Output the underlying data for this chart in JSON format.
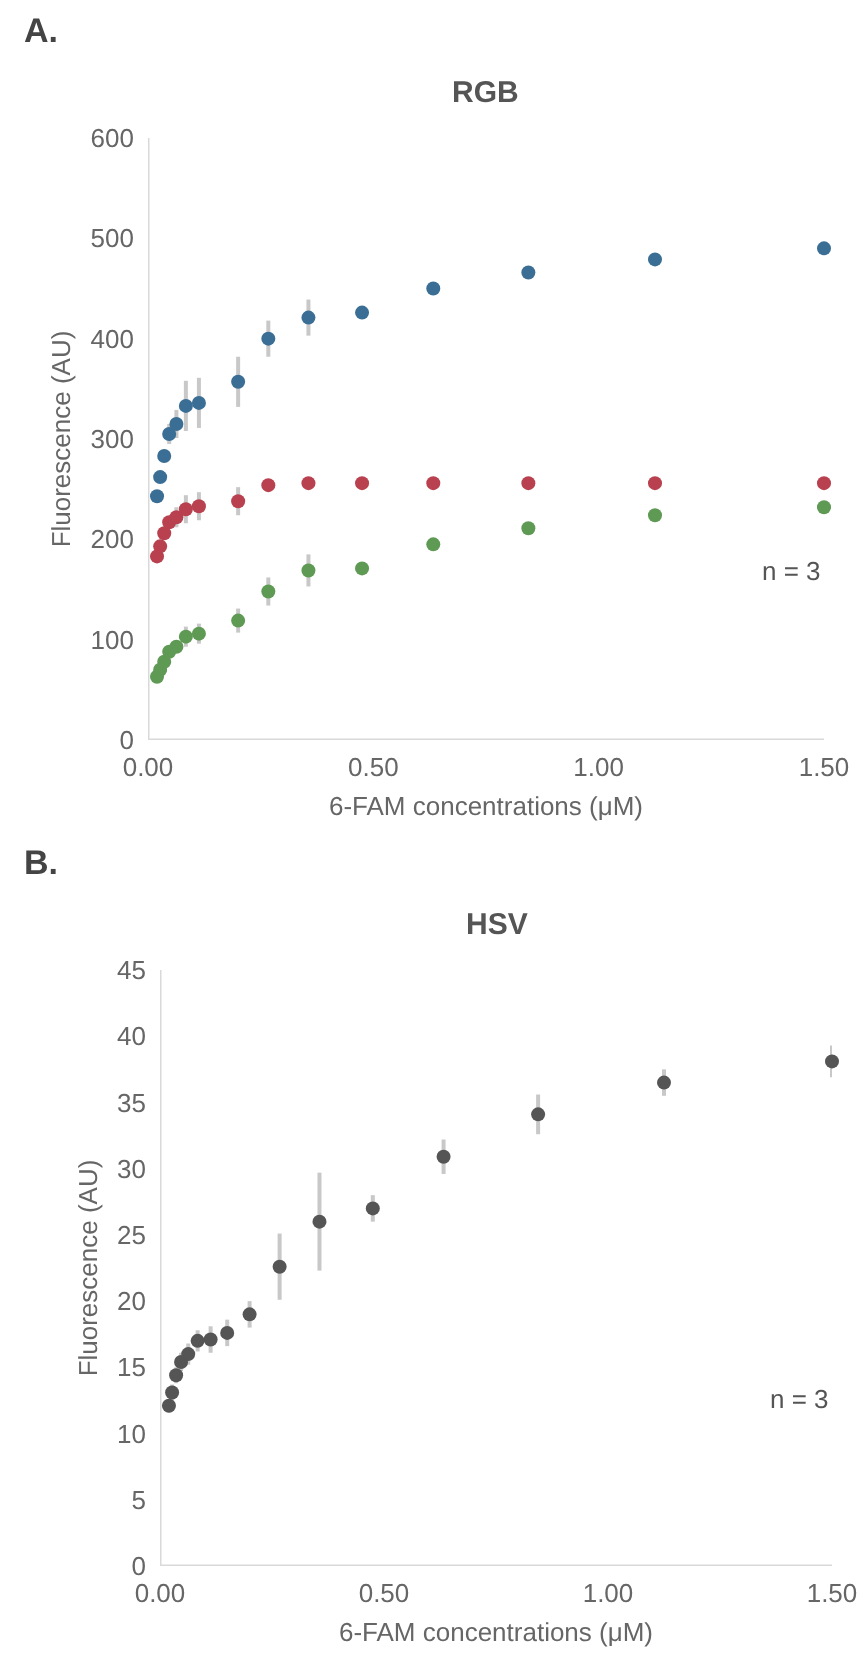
{
  "chart_data": [
    {
      "type": "scatter",
      "title": "RGB",
      "xlabel": "6-FAM concentrations (μM)",
      "ylabel": "Fluorescence (AU)",
      "annotations": [
        "A.",
        "n = 3"
      ],
      "x": [
        0.02,
        0.027,
        0.036,
        0.047,
        0.063,
        0.084,
        0.113,
        0.2,
        0.267,
        0.356,
        0.475,
        0.633,
        0.844,
        1.125,
        1.5
      ],
      "xlim": [
        0,
        1.5
      ],
      "xticks": [
        {
          "value": 0,
          "label": "0.00"
        },
        {
          "value": 0.5,
          "label": "0.50"
        },
        {
          "value": 1,
          "label": "1.00"
        },
        {
          "value": 1.5,
          "label": "1.50"
        }
      ],
      "ylim": [
        0,
        600
      ],
      "yticks": [
        0,
        100,
        200,
        300,
        400,
        500,
        600
      ],
      "grid": false,
      "marker": "circle",
      "series": [
        {
          "color": "#3b6e94",
          "values": [
            243,
            262,
            283,
            305,
            315,
            333,
            336,
            357,
            400,
            421,
            426,
            450,
            466,
            479,
            490
          ],
          "errors": [
            null,
            null,
            null,
            10,
            14,
            25,
            25,
            25,
            18,
            18,
            null,
            null,
            null,
            null,
            null
          ]
        },
        {
          "color": "#b8404f",
          "values": [
            183,
            193,
            206,
            217,
            222,
            230,
            233,
            238,
            254,
            256,
            256,
            256,
            256,
            256,
            256
          ],
          "errors": [
            null,
            null,
            null,
            null,
            10,
            14,
            14,
            14,
            null,
            null,
            null,
            null,
            null,
            null,
            null
          ]
        },
        {
          "color": "#5f9a55",
          "values": [
            63,
            70,
            78,
            88,
            93,
            103,
            106,
            119,
            148,
            169,
            171,
            195,
            211,
            224,
            232
          ],
          "errors": [
            null,
            null,
            null,
            null,
            null,
            10,
            10,
            12,
            14,
            16,
            null,
            null,
            null,
            null,
            null
          ]
        }
      ]
    },
    {
      "type": "scatter",
      "title": "HSV",
      "xlabel": "6-FAM concentrations (μM)",
      "ylabel": "Fluorescence (AU)",
      "annotations": [
        "B.",
        "n = 3"
      ],
      "x": [
        0.02,
        0.027,
        0.036,
        0.047,
        0.063,
        0.084,
        0.113,
        0.15,
        0.2,
        0.267,
        0.356,
        0.475,
        0.633,
        0.844,
        1.125,
        1.5
      ],
      "xlim": [
        0,
        1.5
      ],
      "xticks": [
        {
          "value": 0,
          "label": "0.00"
        },
        {
          "value": 0.5,
          "label": "0.50"
        },
        {
          "value": 1,
          "label": "1.00"
        },
        {
          "value": 1.5,
          "label": "1.50"
        }
      ],
      "ylim": [
        0,
        45
      ],
      "yticks": [
        0,
        5,
        10,
        15,
        20,
        25,
        30,
        35,
        40,
        45
      ],
      "grid": false,
      "marker": "circle",
      "series": [
        {
          "color": "#555555",
          "values": [
            12.1,
            13.1,
            14.4,
            15.4,
            16.0,
            17.0,
            17.1,
            17.6,
            19.0,
            22.6,
            26.0,
            27.0,
            30.9,
            34.1,
            36.5,
            38.1
          ],
          "errors": [
            0.5,
            0.6,
            0.6,
            0.7,
            0.8,
            0.8,
            1.0,
            1.0,
            1.0,
            2.5,
            3.7,
            1.0,
            1.3,
            1.5,
            1.0,
            1.2
          ]
        }
      ]
    }
  ]
}
